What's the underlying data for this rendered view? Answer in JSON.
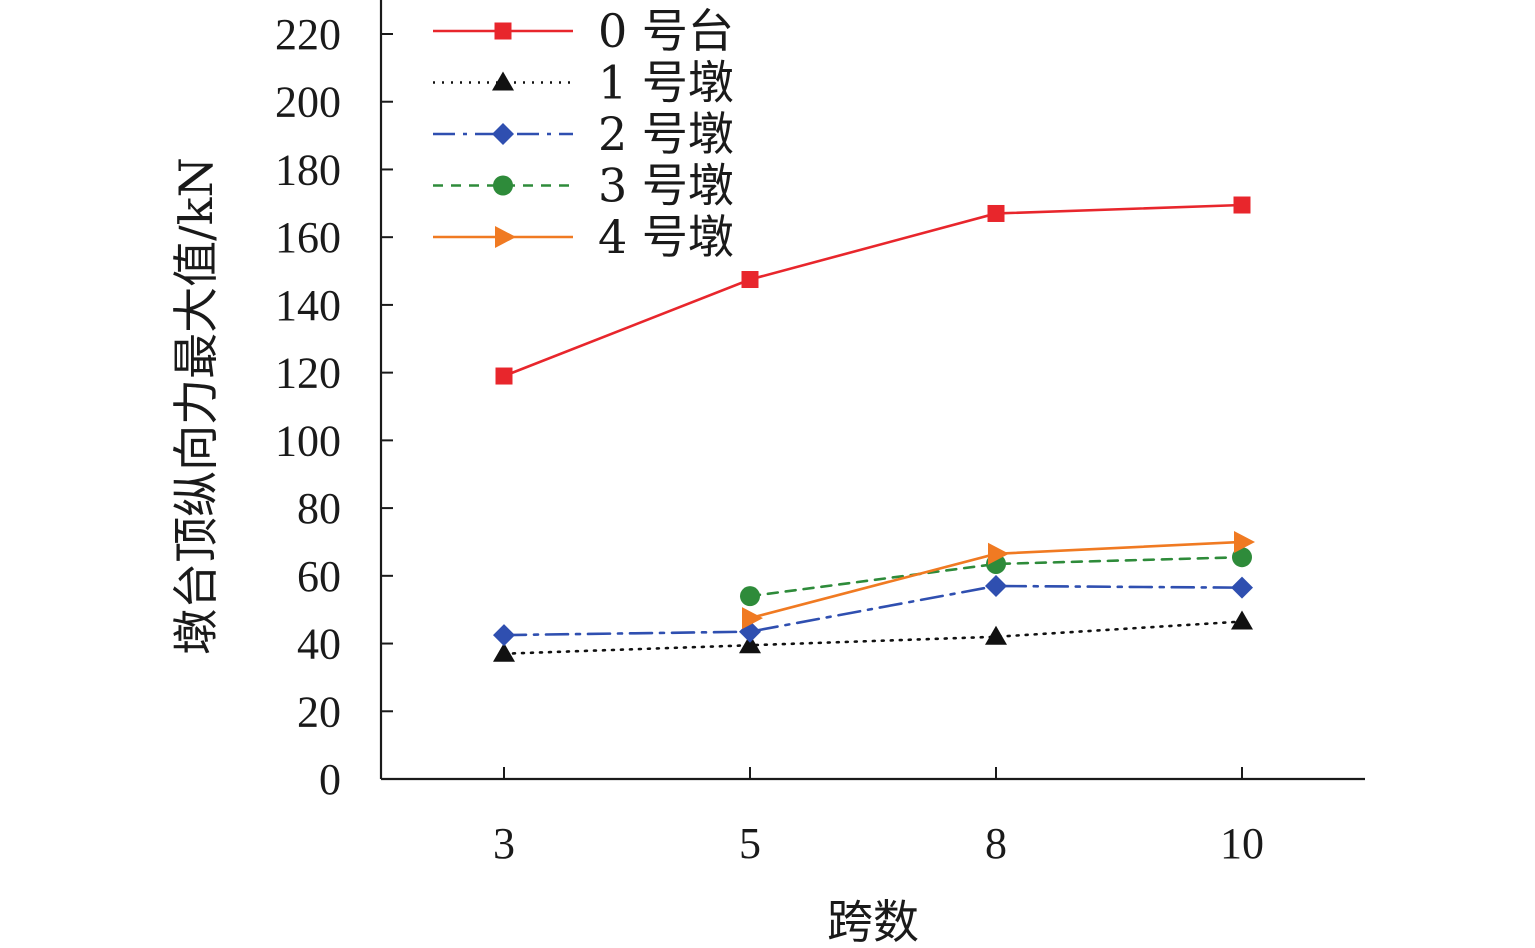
{
  "chart_data": {
    "type": "line",
    "xlabel": "跨数",
    "ylabel": "墩台顶纵向力最大值/kN",
    "categories": [
      "3",
      "5",
      "8",
      "10"
    ],
    "ylim": [
      0,
      220
    ],
    "yticks": [
      0,
      20,
      40,
      60,
      80,
      100,
      120,
      140,
      160,
      180,
      200,
      220
    ],
    "grid": false,
    "legend_position": "top-left",
    "series": [
      {
        "name": "0 号台",
        "color": "#e8262c",
        "dash": "solid",
        "marker": "square",
        "values": [
          119,
          147.5,
          167,
          169.5
        ]
      },
      {
        "name": "1 号墩",
        "color": "#111111",
        "dash": "dotted",
        "marker": "triangle",
        "values": [
          37,
          39.5,
          42,
          46.5
        ]
      },
      {
        "name": "2 号墩",
        "color": "#2f4fb0",
        "dash": "dashdot",
        "marker": "diamond",
        "values": [
          42.5,
          43.5,
          57,
          56.5
        ]
      },
      {
        "name": "3 号墩",
        "color": "#2e8b3a",
        "dash": "dashed",
        "marker": "circle",
        "values": [
          null,
          54,
          63.5,
          65.5
        ]
      },
      {
        "name": "4 号墩",
        "color": "#f07a22",
        "dash": "solid",
        "marker": "triangle-right",
        "values": [
          null,
          47.5,
          66.5,
          70
        ]
      }
    ]
  }
}
